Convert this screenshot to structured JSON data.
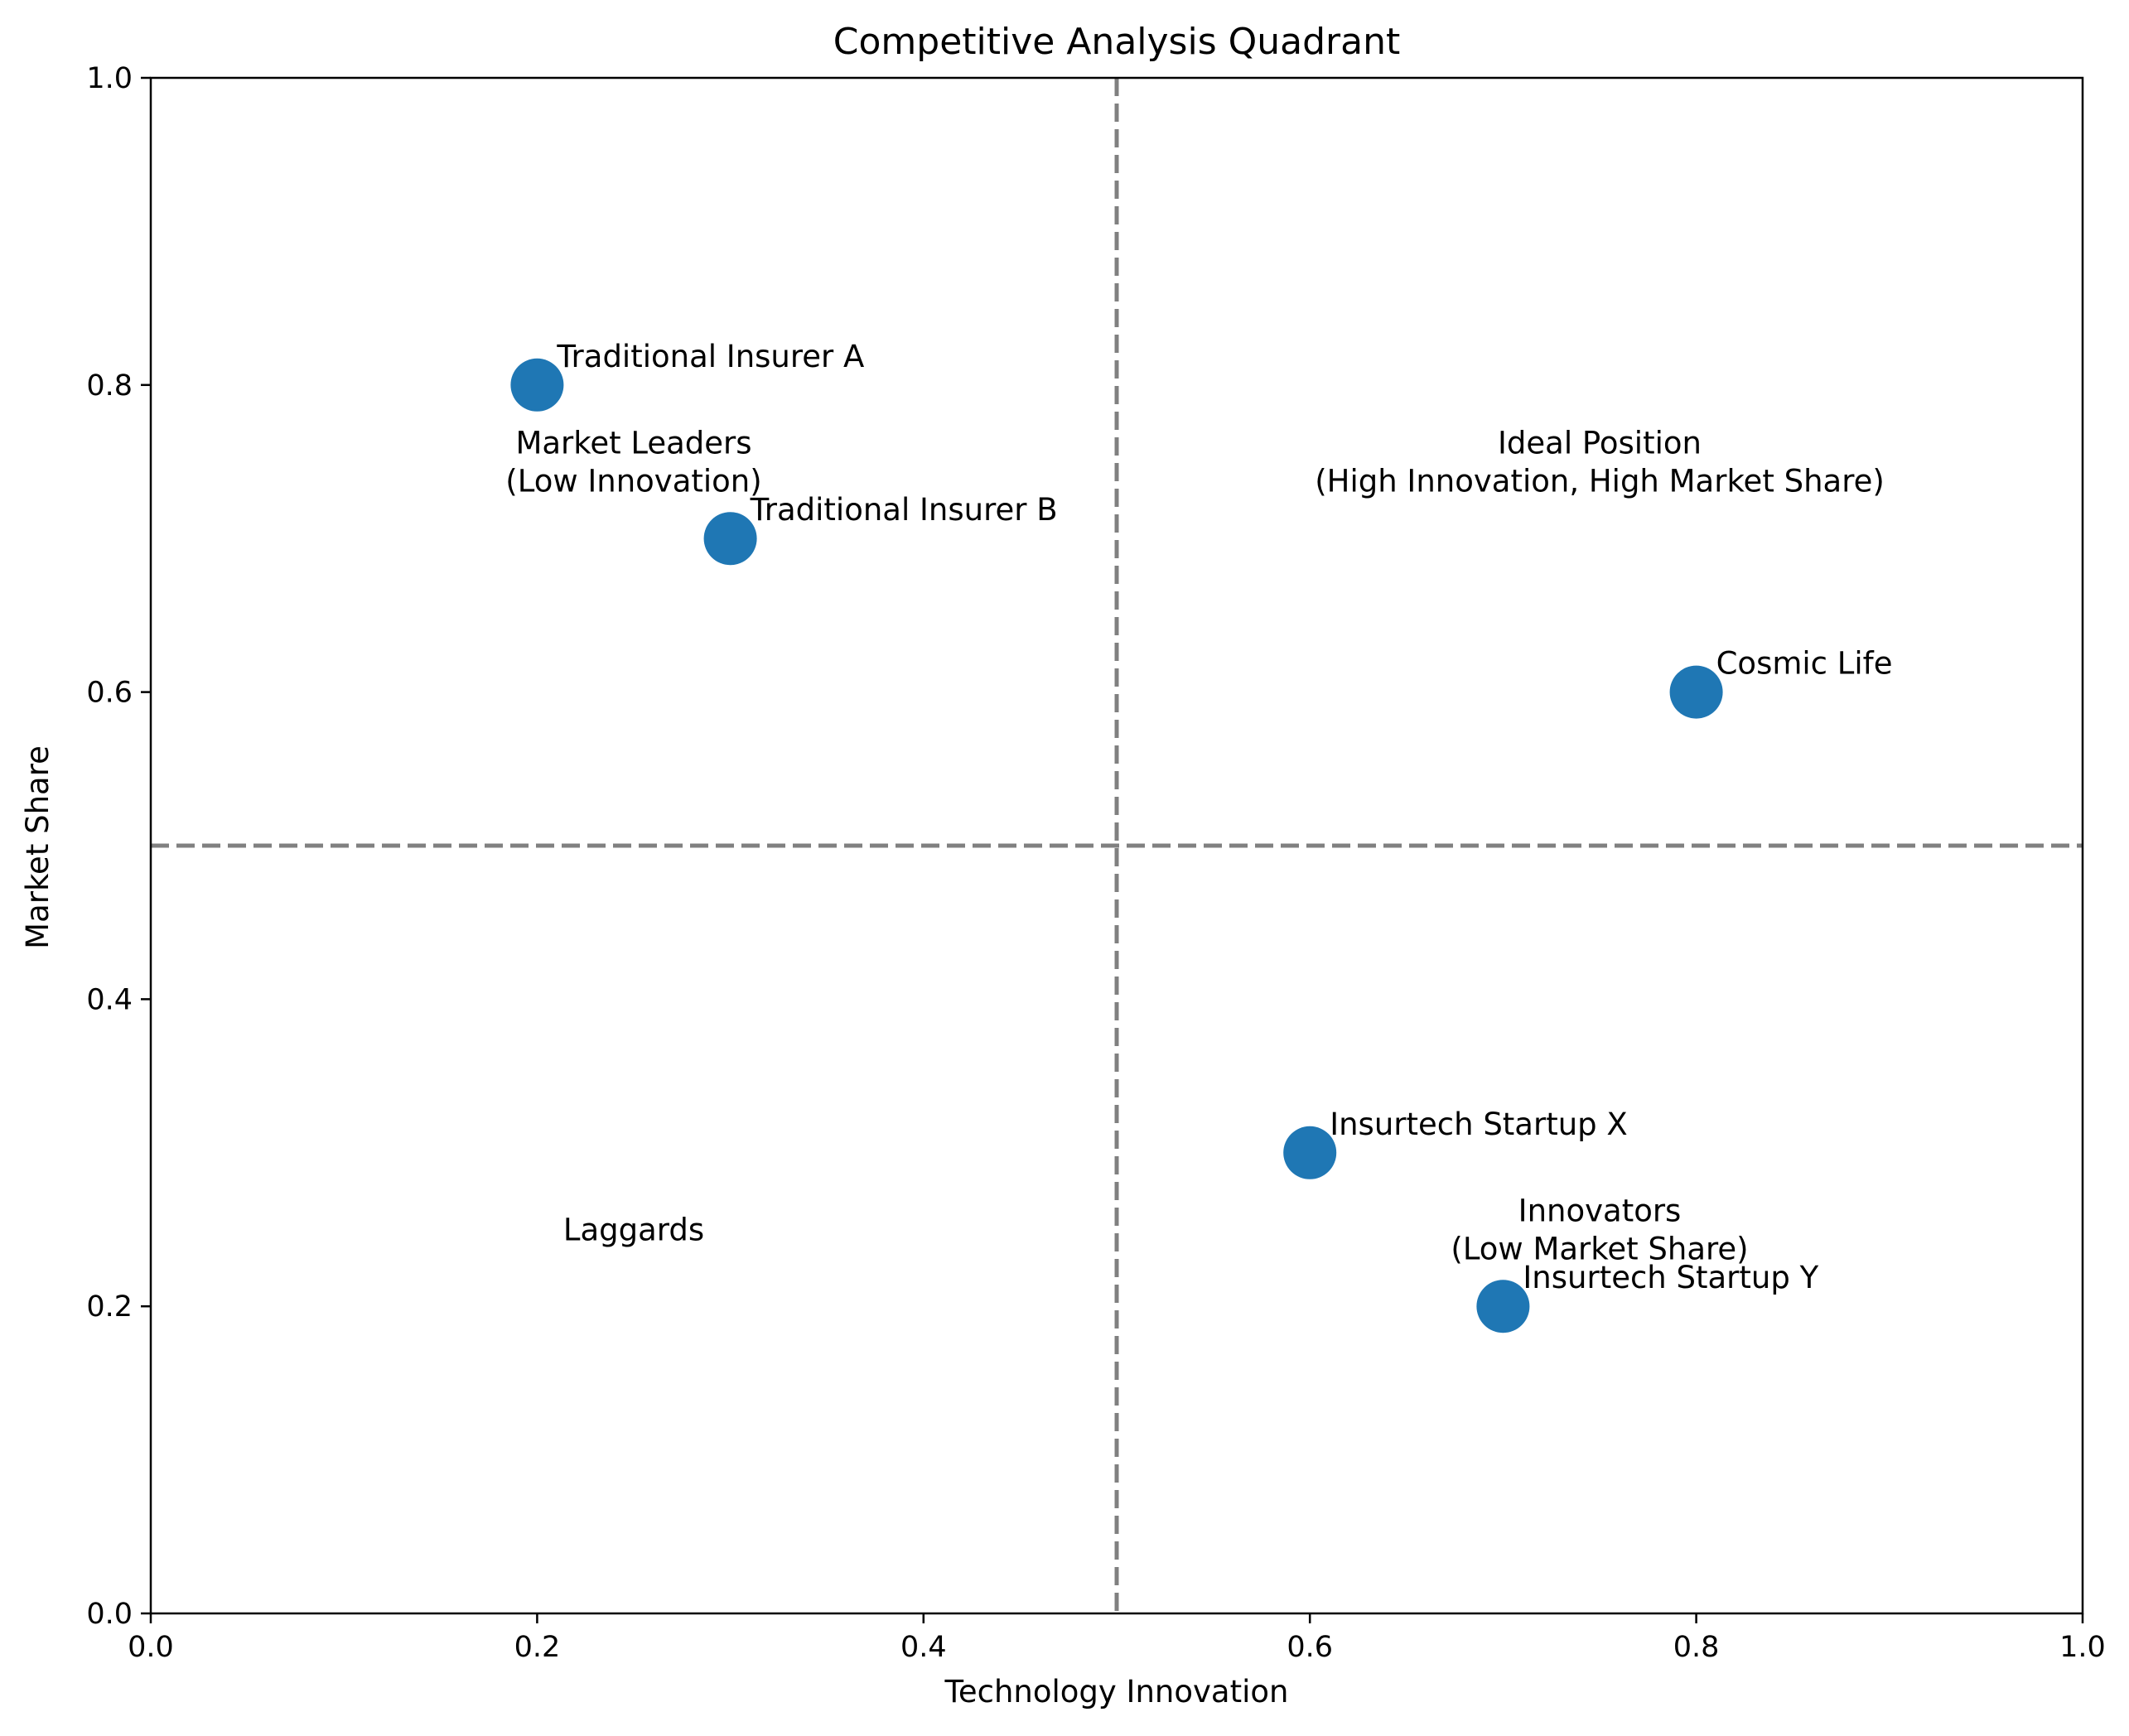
{
  "chart_data": {
    "type": "scatter",
    "title": "Competitive Analysis Quadrant",
    "xlabel": "Technology Innovation",
    "ylabel": "Market Share",
    "xlim": [
      0,
      1
    ],
    "ylim": [
      0,
      1
    ],
    "x_ticks": [
      "0.0",
      "0.2",
      "0.4",
      "0.6",
      "0.8",
      "1.0"
    ],
    "y_ticks": [
      "0.0",
      "0.2",
      "0.4",
      "0.6",
      "0.8",
      "1.0"
    ],
    "grid": false,
    "divider_lines": {
      "x": 0.5,
      "y": 0.5,
      "style": "dashed",
      "color": "#808080"
    },
    "marker_color": "#1f77b4",
    "points": [
      {
        "label": "Traditional Insurer A",
        "x": 0.2,
        "y": 0.8
      },
      {
        "label": "Traditional Insurer B",
        "x": 0.3,
        "y": 0.7
      },
      {
        "label": "Cosmic Life",
        "x": 0.8,
        "y": 0.6
      },
      {
        "label": "Insurtech Startup X",
        "x": 0.6,
        "y": 0.3
      },
      {
        "label": "Insurtech Startup Y",
        "x": 0.7,
        "y": 0.2
      }
    ],
    "quadrant_labels": [
      {
        "lines": [
          "Market Leaders",
          "(Low Innovation)"
        ],
        "x": 0.25,
        "y": 0.75
      },
      {
        "lines": [
          "Ideal Position",
          "(High Innovation, High Market Share)"
        ],
        "x": 0.75,
        "y": 0.75
      },
      {
        "lines": [
          "Laggards"
        ],
        "x": 0.25,
        "y": 0.25
      },
      {
        "lines": [
          "Innovators",
          "(Low Market Share)"
        ],
        "x": 0.75,
        "y": 0.25
      }
    ]
  }
}
